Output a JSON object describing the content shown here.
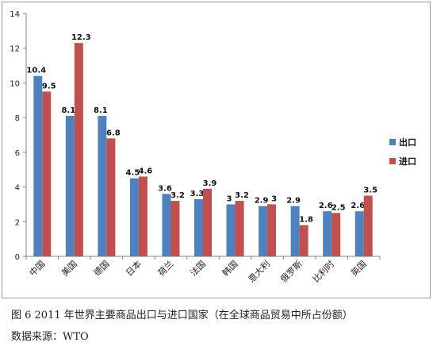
{
  "chart_data": {
    "type": "bar",
    "categories": [
      "中国",
      "美国",
      "德国",
      "日本",
      "荷兰",
      "法国",
      "韩国",
      "意大利",
      "俄罗斯",
      "比利时",
      "英国"
    ],
    "series": [
      {
        "name": "出口",
        "color": "#4f81bd",
        "values": [
          10.4,
          8.1,
          8.1,
          4.5,
          3.6,
          3.3,
          3.0,
          2.9,
          2.9,
          2.6,
          2.6
        ],
        "labels": [
          "10.4",
          "8.1",
          "8.1",
          "4.5",
          "3.6",
          "3.3",
          "3",
          "2.9",
          "2.9",
          "2.6",
          "2.6"
        ]
      },
      {
        "name": "进口",
        "color": "#c0504d",
        "values": [
          9.5,
          12.3,
          6.8,
          4.6,
          3.2,
          3.9,
          3.2,
          3.0,
          1.8,
          2.5,
          3.5
        ],
        "labels": [
          "9.5",
          "12.3",
          "6.8",
          "4.6",
          "3.2",
          "3.9",
          "3.2",
          "3",
          "1.8",
          "2.5",
          "3.5"
        ]
      }
    ],
    "ylim": [
      0,
      14
    ],
    "yticks": [
      "0",
      "2",
      "4",
      "6",
      "8",
      "10",
      "12",
      "14"
    ],
    "grid": false,
    "legend": "right"
  },
  "caption": {
    "line1": "图 6 2011 年世界主要商品出口与进口国家（在全球商品贸易中所占份额）",
    "line2": "数据来源：WTO"
  }
}
